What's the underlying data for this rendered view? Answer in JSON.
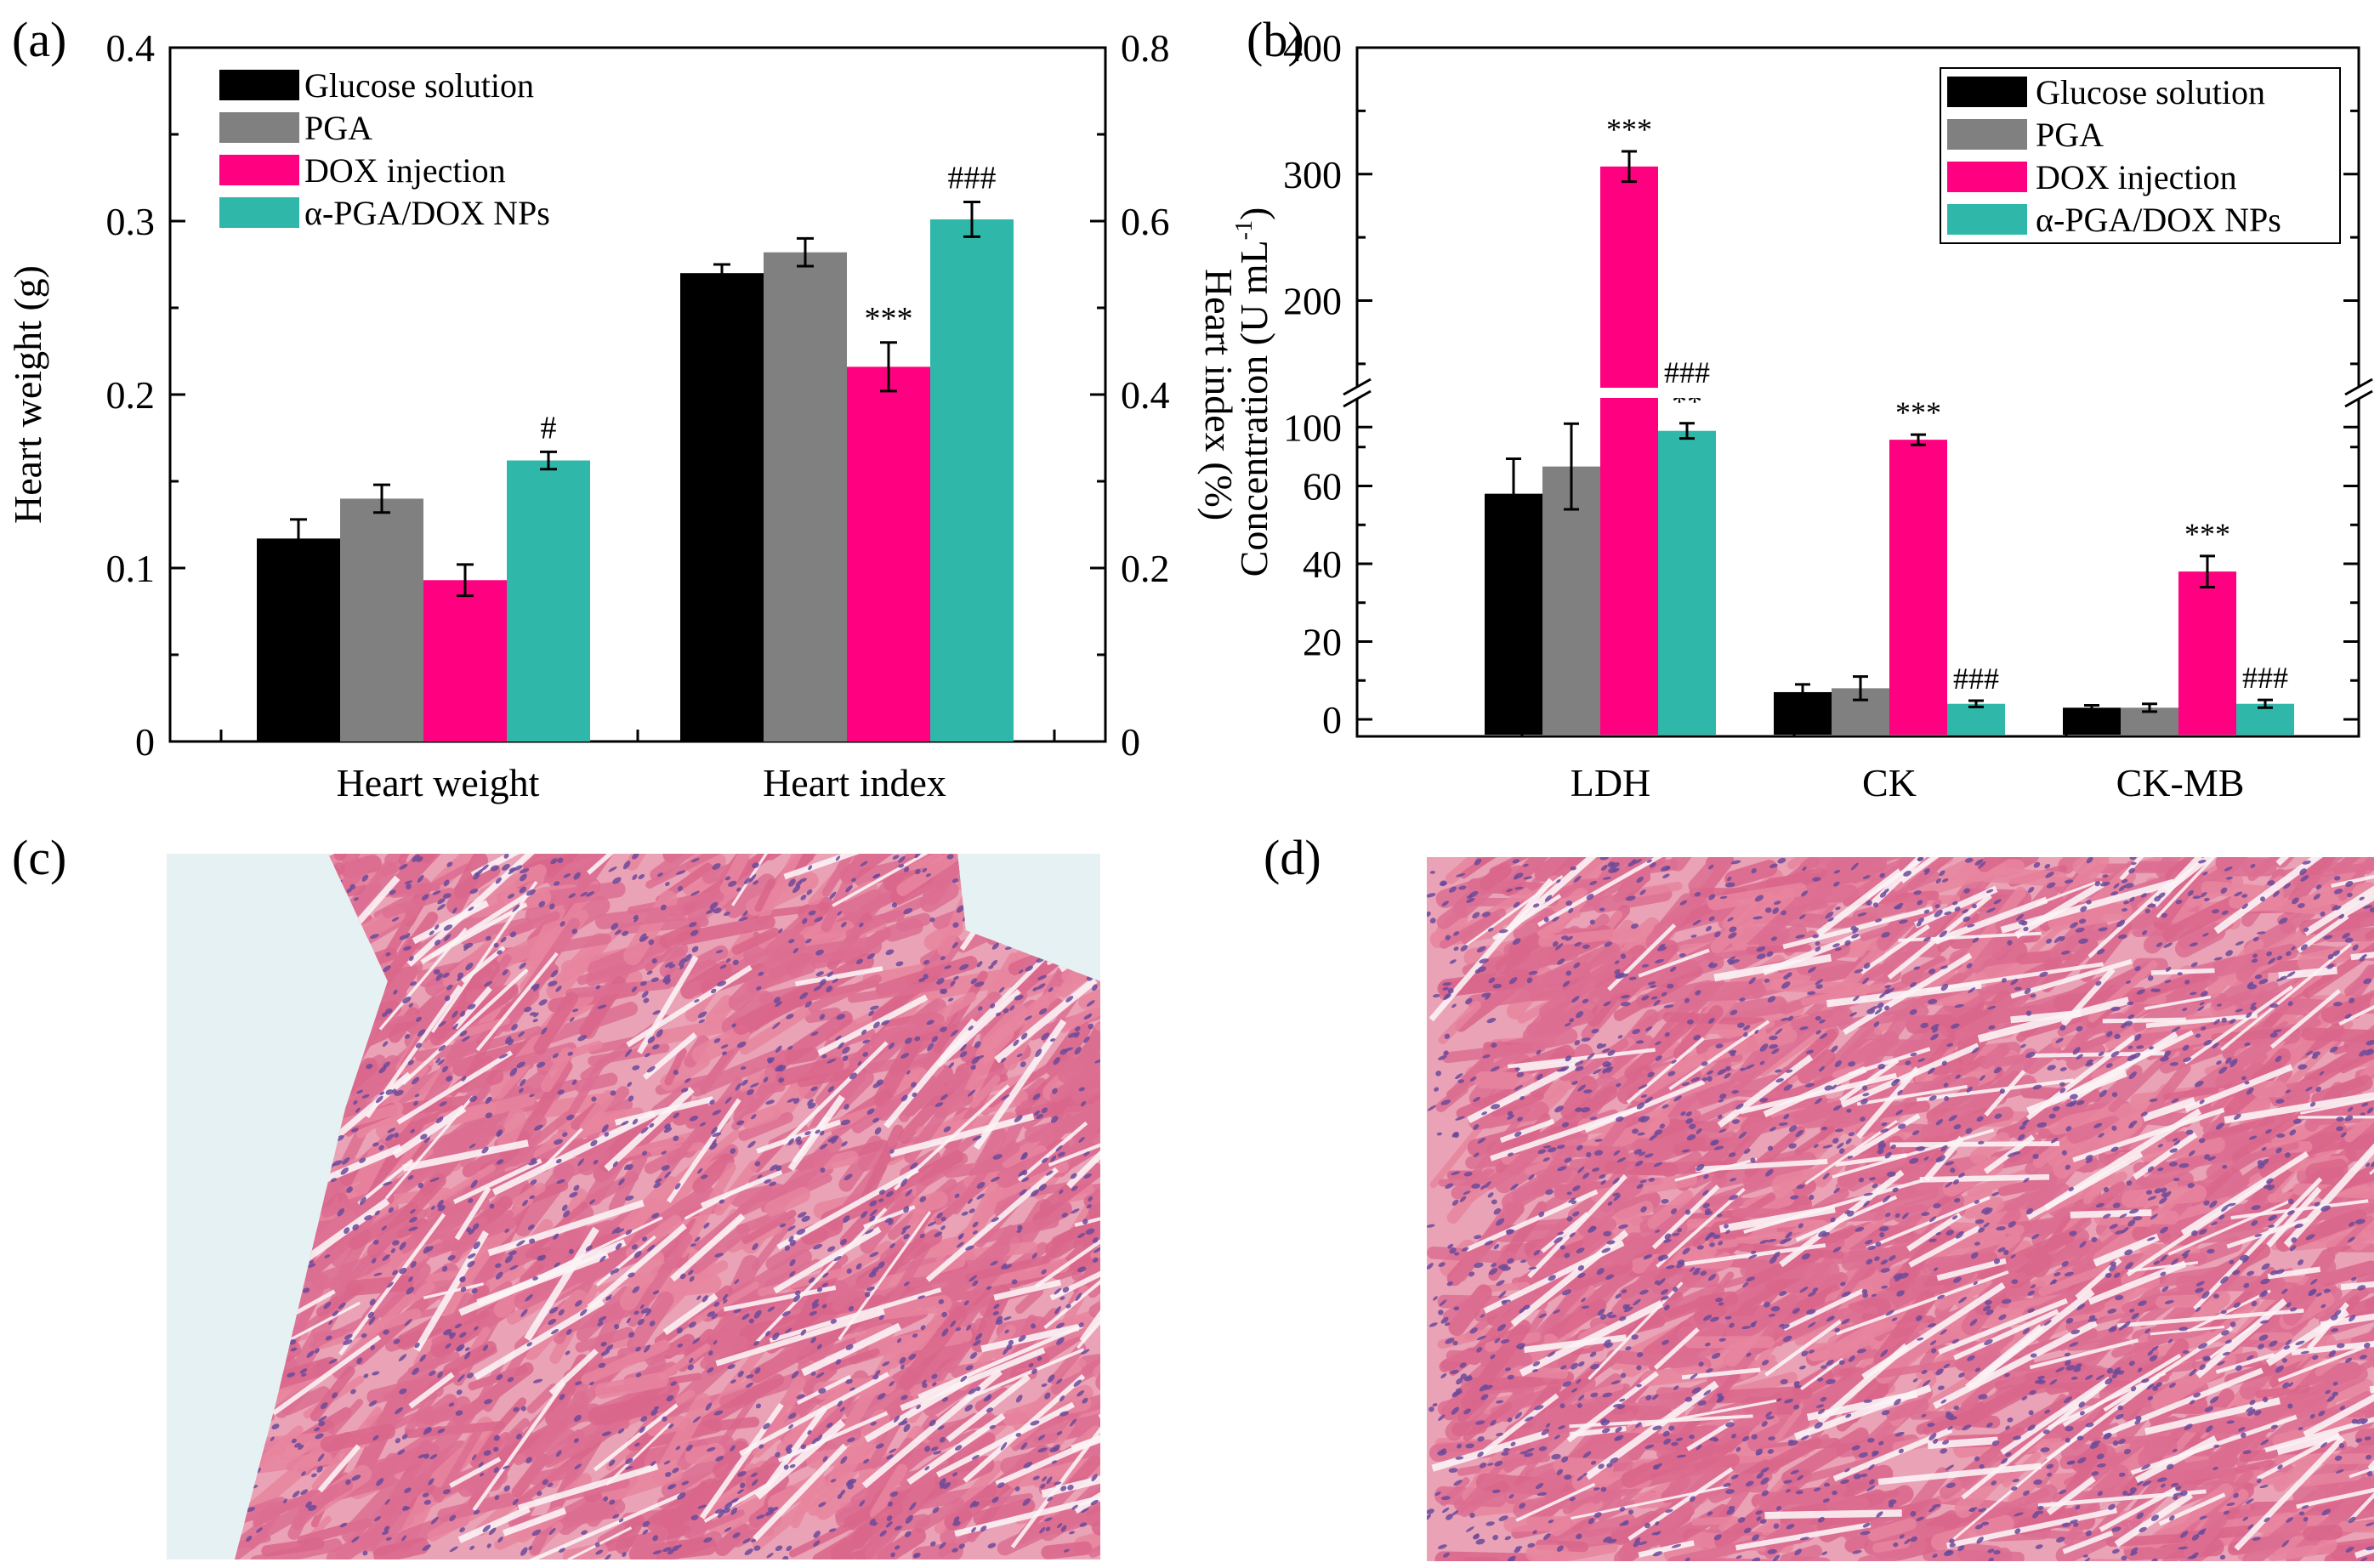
{
  "colors": {
    "glucose": "#000000",
    "pga": "#808080",
    "dox": "#ff0080",
    "np": "#2fb8aa",
    "tissue_bg_c": "#e6f1f3",
    "tissue_bg_d": "#f3e8ee",
    "tissue_pink": "#e07a9a",
    "tissue_nuclei": "#6b4a9a"
  },
  "panel_labels": {
    "a": "(a)",
    "b": "(b)",
    "c": "(c)",
    "d": "(d)"
  },
  "micrographs": {
    "c": "H&E-stained heart tissue section, DOX injection group",
    "d": "H&E-stained heart tissue section, α-PGA/DOX NPs group"
  },
  "chart_data": [
    {
      "id": "a",
      "type": "bar",
      "categories": [
        "Heart weight",
        "Heart index"
      ],
      "ylabel": "Heart weight (g)",
      "ylabel_right": "Heart index (%)",
      "ylim": [
        0,
        0.4
      ],
      "ylim_right": [
        0,
        0.8
      ],
      "yticks": [
        "0",
        "0.1",
        "0.2",
        "0.3",
        "0.4"
      ],
      "yticks_right": [
        "0",
        "0.2",
        "0.4",
        "0.6",
        "0.8"
      ],
      "legend_position": "top-left",
      "series": [
        {
          "name": "Glucose solution",
          "color_key": "glucose",
          "values": [
            0.117,
            0.54
          ],
          "errors": [
            0.011,
            0.01
          ]
        },
        {
          "name": "PGA",
          "color_key": "pga",
          "values": [
            0.14,
            0.564
          ],
          "errors": [
            0.008,
            0.016
          ]
        },
        {
          "name": "DOX injection",
          "color_key": "dox",
          "values": [
            0.093,
            0.432
          ],
          "errors": [
            0.009,
            0.028
          ],
          "annotations": [
            "",
            "***"
          ]
        },
        {
          "name": "α-PGA/DOX NPs",
          "color_key": "np",
          "values": [
            0.162,
            0.602
          ],
          "errors": [
            0.005,
            0.02
          ],
          "annotations": [
            "#",
            "###"
          ]
        }
      ]
    },
    {
      "id": "b",
      "type": "bar",
      "categories": [
        "LDH",
        "CK",
        "CK-MB"
      ],
      "ylabel": "Concentration (U mL",
      "ylabel_sup": "-1",
      "ylabel_close": ")",
      "axis_break": [
        80,
        90
      ],
      "ylim": [
        0,
        400
      ],
      "yticks_lower": [
        "0",
        "20",
        "40",
        "60"
      ],
      "yticks_upper": [
        "100",
        "200",
        "300",
        "400"
      ],
      "legend_position": "top-right",
      "series": [
        {
          "name": "Glucose solution",
          "color_key": "glucose",
          "values": [
            58,
            7,
            3
          ],
          "errors": [
            9,
            2,
            0.6
          ],
          "annotations": [
            "",
            "",
            ""
          ]
        },
        {
          "name": "PGA",
          "color_key": "pga",
          "values": [
            65,
            8,
            3
          ],
          "errors": [
            11,
            3,
            1
          ],
          "annotations": [
            "",
            "",
            ""
          ]
        },
        {
          "name": "DOX injection",
          "color_key": "dox",
          "values": [
            306,
            90,
            38
          ],
          "errors": [
            12,
            4,
            4
          ],
          "annotations": [
            "***",
            "***",
            "***"
          ]
        },
        {
          "name": "α-PGA/DOX NPs",
          "color_key": "np",
          "values": [
            97,
            4,
            4
          ],
          "errors": [
            6,
            0.8,
            1
          ],
          "annotations": [
            "###\n**",
            "###",
            "###"
          ]
        }
      ]
    }
  ]
}
